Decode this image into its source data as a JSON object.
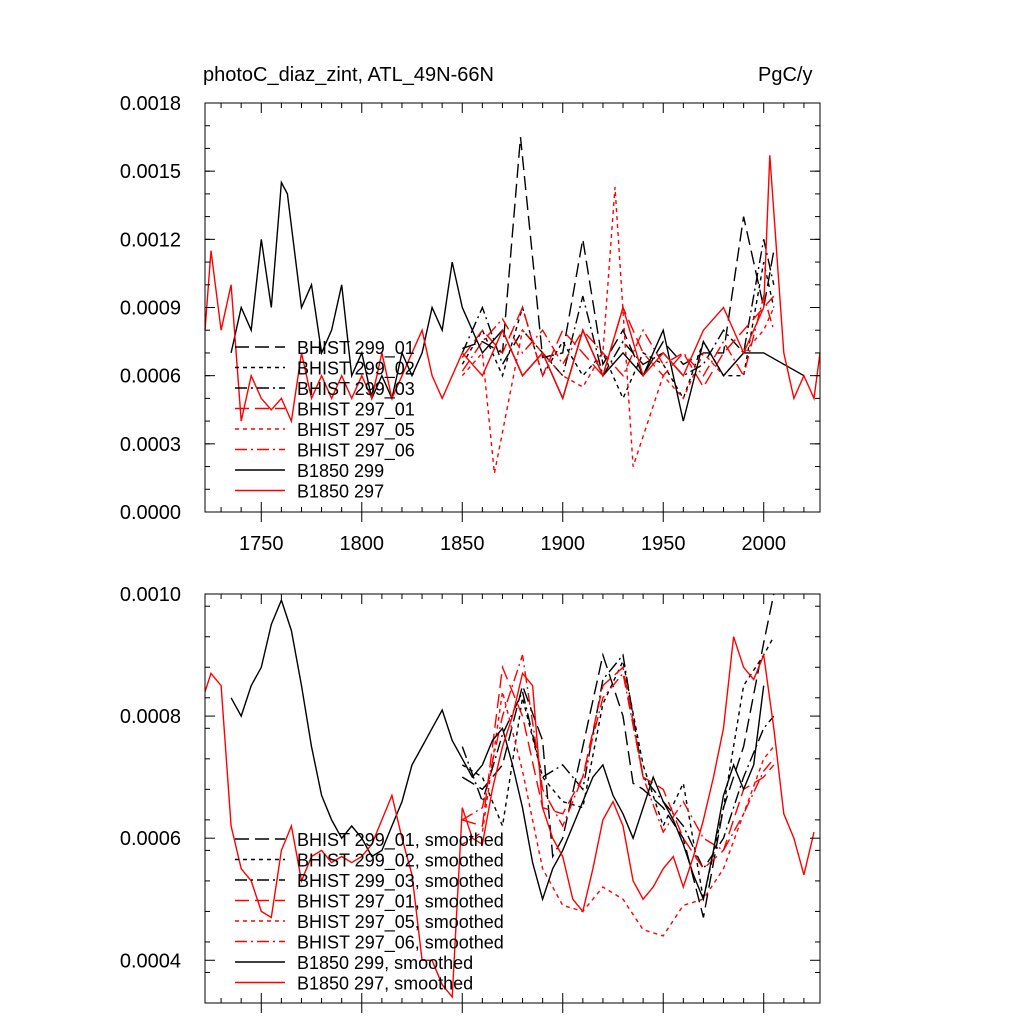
{
  "header": {
    "title_left": "photoC_diaz_zint, ATL_49N-66N",
    "title_right": "PgC/y"
  },
  "chart_data": [
    {
      "type": "line",
      "title": "photoC_diaz_zint, ATL_49N-66N",
      "units": "PgC/y",
      "xlim": [
        1722,
        2028
      ],
      "ylim": [
        0.0,
        0.0018
      ],
      "x_ticks": [
        1750,
        1800,
        1850,
        1900,
        1950,
        2000
      ],
      "x_tick_labels": [
        "1750",
        "1800",
        "1850",
        "1900",
        "1950",
        "2000"
      ],
      "y_ticks": [
        0.0,
        0.0003,
        0.0006,
        0.0009,
        0.0012,
        0.0015,
        0.0018
      ],
      "y_tick_labels": [
        "0.0000",
        "0.0003",
        "0.0006",
        "0.0009",
        "0.0012",
        "0.0015",
        "0.0018"
      ],
      "legend_position": "left",
      "series": [
        {
          "name": "BHIST 299_01",
          "color": "#000000",
          "dash": "long",
          "x": [
            1850,
            1860,
            1870,
            1879,
            1890,
            1900,
            1910,
            1920,
            1930,
            1940,
            1950,
            1960,
            1970,
            1980,
            1990,
            2000,
            2005
          ],
          "y": [
            0.00072,
            0.00075,
            0.0007,
            0.00165,
            0.00068,
            0.0007,
            0.0012,
            0.00065,
            0.0008,
            0.0006,
            0.00075,
            0.00065,
            0.0007,
            0.0007,
            0.0013,
            0.0009,
            0.00115
          ]
        },
        {
          "name": "BHIST 299_02",
          "color": "#000000",
          "dash": "short",
          "x": [
            1850,
            1860,
            1870,
            1880,
            1890,
            1900,
            1910,
            1920,
            1930,
            1940,
            1950,
            1960,
            1970,
            1980,
            1990,
            2000,
            2005
          ],
          "y": [
            0.00065,
            0.0008,
            0.0006,
            0.0009,
            0.0006,
            0.00075,
            0.0006,
            0.0007,
            0.0005,
            0.0007,
            0.00065,
            0.0005,
            0.00075,
            0.0006,
            0.0006,
            0.0011,
            0.0009
          ]
        },
        {
          "name": "BHIST 299_03",
          "color": "#000000",
          "dash": "dashdot",
          "x": [
            1850,
            1860,
            1870,
            1880,
            1890,
            1900,
            1910,
            1920,
            1930,
            1940,
            1950,
            1960,
            1970,
            1980,
            1990,
            2000,
            2005
          ],
          "y": [
            0.0007,
            0.0009,
            0.00065,
            0.0008,
            0.0007,
            0.0006,
            0.00095,
            0.0006,
            0.00075,
            0.00065,
            0.0007,
            0.0006,
            0.00065,
            0.0008,
            0.0007,
            0.0012,
            0.001
          ]
        },
        {
          "name": "BHIST 297_01",
          "color": "#ff0000",
          "dash": "long",
          "x": [
            1850,
            1860,
            1870,
            1880,
            1890,
            1900,
            1910,
            1920,
            1930,
            1940,
            1950,
            1960,
            1970,
            1980,
            1990,
            2000,
            2005
          ],
          "y": [
            0.00068,
            0.0008,
            0.0007,
            0.0009,
            0.0006,
            0.0008,
            0.0007,
            0.0006,
            0.0009,
            0.0007,
            0.0006,
            0.0007,
            0.00055,
            0.0007,
            0.0008,
            0.0009,
            0.00095
          ]
        },
        {
          "name": "BHIST 297_05",
          "color": "#ff0000",
          "dash": "short",
          "x": [
            1850,
            1860,
            1866,
            1880,
            1890,
            1900,
            1910,
            1920,
            1926,
            1935,
            1950,
            1960,
            1970,
            1980,
            1990,
            2000,
            2005
          ],
          "y": [
            0.0006,
            0.0007,
            0.00017,
            0.0008,
            0.0007,
            0.0006,
            0.00055,
            0.0007,
            0.00143,
            0.0002,
            0.0006,
            0.0005,
            0.0007,
            0.0006,
            0.0007,
            0.0008,
            0.0009
          ]
        },
        {
          "name": "BHIST 297_06",
          "color": "#ff0000",
          "dash": "dashdot",
          "x": [
            1850,
            1860,
            1870,
            1880,
            1890,
            1900,
            1910,
            1920,
            1930,
            1940,
            1950,
            1960,
            1970,
            1980,
            1990,
            2000,
            2005
          ],
          "y": [
            0.00062,
            0.00075,
            0.00085,
            0.0007,
            0.0008,
            0.00065,
            0.0008,
            0.0007,
            0.0006,
            0.0008,
            0.00065,
            0.0007,
            0.0006,
            0.00075,
            0.0006,
            0.00095,
            0.0008
          ]
        },
        {
          "name": "B1850 299",
          "color": "#000000",
          "dash": "solid",
          "x": [
            1735,
            1740,
            1745,
            1750,
            1755,
            1760,
            1763,
            1770,
            1775,
            1780,
            1785,
            1790,
            1795,
            1800,
            1805,
            1810,
            1815,
            1820,
            1825,
            1830,
            1835,
            1840,
            1845,
            1850,
            1860,
            1870,
            1880,
            1890,
            1900,
            1910,
            1920,
            1930,
            1940,
            1950,
            1960,
            1970,
            1980,
            1990,
            2000,
            2020
          ],
          "y": [
            0.0007,
            0.0009,
            0.0008,
            0.0012,
            0.0009,
            0.00145,
            0.0014,
            0.0009,
            0.001,
            0.0007,
            0.0008,
            0.001,
            0.0006,
            0.0007,
            0.0005,
            0.0006,
            0.0005,
            0.0007,
            0.0006,
            0.0007,
            0.0009,
            0.0008,
            0.0011,
            0.0009,
            0.0007,
            0.0008,
            0.0006,
            0.0007,
            0.0005,
            0.0008,
            0.0006,
            0.0007,
            0.0006,
            0.0008,
            0.0004,
            0.00075,
            0.0006,
            0.0007,
            0.0007,
            0.0006
          ]
        },
        {
          "name": "B1850 297",
          "color": "#ff0000",
          "dash": "solid",
          "x": [
            1722,
            1725,
            1730,
            1735,
            1740,
            1745,
            1750,
            1755,
            1760,
            1765,
            1770,
            1775,
            1780,
            1785,
            1790,
            1795,
            1800,
            1805,
            1810,
            1815,
            1820,
            1825,
            1830,
            1835,
            1840,
            1850,
            1860,
            1870,
            1880,
            1890,
            1900,
            1910,
            1920,
            1930,
            1940,
            1950,
            1960,
            1970,
            1980,
            1990,
            2000,
            2003,
            2010,
            2015,
            2020,
            2025,
            2028
          ],
          "y": [
            0.0008,
            0.00115,
            0.0008,
            0.001,
            0.0004,
            0.0006,
            0.0005,
            0.00045,
            0.0005,
            0.0004,
            0.0007,
            0.0005,
            0.0006,
            0.0005,
            0.0006,
            0.0005,
            0.0006,
            0.0005,
            0.0007,
            0.0005,
            0.0006,
            0.0007,
            0.0008,
            0.0006,
            0.0005,
            0.0007,
            0.0006,
            0.0008,
            0.0006,
            0.0007,
            0.0005,
            0.0008,
            0.0006,
            0.0009,
            0.0006,
            0.0007,
            0.0006,
            0.0008,
            0.0009,
            0.0007,
            0.0009,
            0.00157,
            0.0007,
            0.0005,
            0.0006,
            0.0005,
            0.0007
          ]
        }
      ]
    },
    {
      "type": "line",
      "xlim": [
        1722,
        2028
      ],
      "ylim": [
        0.00033,
        0.001
      ],
      "x_ticks": [
        1750,
        1800,
        1850,
        1900,
        1950,
        2000
      ],
      "y_ticks": [
        0.0004,
        0.0006,
        0.0008,
        0.001
      ],
      "y_tick_labels": [
        "0.0004",
        "0.0006",
        "0.0008",
        "0.0010"
      ],
      "legend_position": "bottom-left",
      "series": [
        {
          "name": "BHIST 299_01, smoothed",
          "color": "#000000",
          "dash": "long",
          "x": [
            1850,
            1860,
            1870,
            1880,
            1890,
            1895,
            1900,
            1910,
            1920,
            1930,
            1935,
            1940,
            1950,
            1960,
            1970,
            1980,
            1990,
            2000,
            2005
          ],
          "y": [
            0.0007,
            0.00068,
            0.00072,
            0.00085,
            0.00076,
            0.00057,
            0.0006,
            0.00075,
            0.0009,
            0.0008,
            0.00069,
            0.00068,
            0.00065,
            0.0006,
            0.00047,
            0.00065,
            0.00075,
            0.00092,
            0.001
          ]
        },
        {
          "name": "BHIST 299_02, smoothed",
          "color": "#000000",
          "dash": "short",
          "x": [
            1850,
            1860,
            1870,
            1880,
            1890,
            1900,
            1910,
            1920,
            1930,
            1940,
            1950,
            1960,
            1970,
            1980,
            1990,
            2000,
            2005
          ],
          "y": [
            0.00072,
            0.0007,
            0.00062,
            0.00083,
            0.0007,
            0.00066,
            0.00065,
            0.00082,
            0.00089,
            0.00072,
            0.00062,
            0.00069,
            0.0005,
            0.00065,
            0.00085,
            0.0009,
            0.00093
          ]
        },
        {
          "name": "BHIST 299_03, smoothed",
          "color": "#000000",
          "dash": "dashdot",
          "x": [
            1850,
            1860,
            1870,
            1880,
            1890,
            1900,
            1910,
            1920,
            1930,
            1940,
            1950,
            1960,
            1970,
            1980,
            1990,
            2000,
            2005
          ],
          "y": [
            0.00075,
            0.00066,
            0.00077,
            0.00084,
            0.0007,
            0.00072,
            0.00068,
            0.00086,
            0.0009,
            0.0007,
            0.00066,
            0.00062,
            0.00055,
            0.0006,
            0.0007,
            0.00078,
            0.0008
          ]
        },
        {
          "name": "BHIST 297_01, smoothed",
          "color": "#ff0000",
          "dash": "long",
          "x": [
            1850,
            1860,
            1870,
            1880,
            1890,
            1900,
            1910,
            1920,
            1930,
            1940,
            1950,
            1960,
            1970,
            1980,
            1990,
            2000,
            2005
          ],
          "y": [
            0.00063,
            0.00062,
            0.00088,
            0.0008,
            0.00065,
            0.00064,
            0.0007,
            0.00085,
            0.00088,
            0.0007,
            0.00068,
            0.0006,
            0.00055,
            0.00058,
            0.00068,
            0.0007,
            0.00072
          ]
        },
        {
          "name": "BHIST 297_05, smoothed",
          "color": "#ff0000",
          "dash": "short",
          "x": [
            1850,
            1860,
            1870,
            1880,
            1890,
            1900,
            1910,
            1920,
            1930,
            1940,
            1950,
            1960,
            1970,
            1980,
            1990,
            2000,
            2005
          ],
          "y": [
            0.00059,
            0.00061,
            0.00084,
            0.00071,
            0.00055,
            0.00049,
            0.00048,
            0.00052,
            0.0005,
            0.00045,
            0.00044,
            0.00049,
            0.0005,
            0.00055,
            0.00064,
            0.00073,
            0.00075
          ]
        },
        {
          "name": "BHIST 297_06, smoothed",
          "color": "#ff0000",
          "dash": "dashdot",
          "x": [
            1850,
            1860,
            1870,
            1880,
            1890,
            1900,
            1910,
            1920,
            1930,
            1940,
            1950,
            1960,
            1970,
            1980,
            1990,
            2000,
            2005
          ],
          "y": [
            0.00063,
            0.00065,
            0.0008,
            0.0009,
            0.00068,
            0.00062,
            0.0007,
            0.00083,
            0.00087,
            0.0007,
            0.00061,
            0.00066,
            0.0006,
            0.00058,
            0.00064,
            0.00071,
            0.00073
          ]
        },
        {
          "name": "B1850 299, smoothed",
          "color": "#000000",
          "dash": "solid",
          "x": [
            1735,
            1740,
            1745,
            1750,
            1755,
            1760,
            1765,
            1770,
            1775,
            1780,
            1785,
            1790,
            1795,
            1800,
            1805,
            1810,
            1815,
            1820,
            1825,
            1830,
            1835,
            1840,
            1845,
            1850,
            1855,
            1860,
            1865,
            1870,
            1875,
            1880,
            1885,
            1890,
            1895,
            1900,
            1905,
            1910,
            1915,
            1920,
            1925,
            1930,
            1935,
            1940,
            1945,
            1950,
            1955,
            1960,
            1965,
            1970,
            1975,
            1980,
            1985,
            1990,
            1995,
            2000
          ],
          "y": [
            0.00083,
            0.0008,
            0.00085,
            0.00088,
            0.00095,
            0.00099,
            0.00094,
            0.00085,
            0.00075,
            0.00067,
            0.00063,
            0.0006,
            0.00062,
            0.0006,
            0.00057,
            0.00058,
            0.00062,
            0.00066,
            0.00072,
            0.00075,
            0.00078,
            0.00081,
            0.00076,
            0.00073,
            0.0007,
            0.00072,
            0.00076,
            0.00078,
            0.00072,
            0.00065,
            0.00056,
            0.0005,
            0.00055,
            0.00058,
            0.00062,
            0.00066,
            0.0007,
            0.00072,
            0.00067,
            0.00064,
            0.0006,
            0.00065,
            0.0007,
            0.00066,
            0.00063,
            0.00059,
            0.00054,
            0.0005,
            0.00058,
            0.00067,
            0.00072,
            0.00068,
            0.00072,
            0.00085
          ]
        },
        {
          "name": "B1850 297, smoothed",
          "color": "#ff0000",
          "dash": "solid",
          "x": [
            1722,
            1725,
            1730,
            1735,
            1740,
            1745,
            1750,
            1755,
            1760,
            1765,
            1770,
            1775,
            1780,
            1785,
            1790,
            1795,
            1800,
            1805,
            1810,
            1815,
            1820,
            1825,
            1830,
            1835,
            1840,
            1845,
            1850,
            1855,
            1860,
            1865,
            1870,
            1875,
            1880,
            1885,
            1890,
            1895,
            1900,
            1905,
            1910,
            1915,
            1920,
            1925,
            1930,
            1935,
            1940,
            1945,
            1950,
            1955,
            1960,
            1965,
            1970,
            1975,
            1980,
            1985,
            1990,
            1995,
            2000,
            2005,
            2010,
            2015,
            2020,
            2025
          ],
          "y": [
            0.00084,
            0.00087,
            0.00085,
            0.00062,
            0.00055,
            0.00053,
            0.00048,
            0.00047,
            0.00058,
            0.00062,
            0.00053,
            0.00057,
            0.00058,
            0.00056,
            0.00057,
            0.00056,
            0.00057,
            0.00059,
            0.00063,
            0.00067,
            0.0006,
            0.00054,
            0.0004,
            0.0004,
            0.00036,
            0.00034,
            0.00065,
            0.0006,
            0.00059,
            0.00068,
            0.00075,
            0.0008,
            0.00087,
            0.00085,
            0.00065,
            0.0006,
            0.00057,
            0.0005,
            0.00048,
            0.00055,
            0.00063,
            0.00066,
            0.00062,
            0.00053,
            0.0005,
            0.00052,
            0.00055,
            0.00057,
            0.00052,
            0.00057,
            0.00063,
            0.0007,
            0.00078,
            0.00093,
            0.00088,
            0.00086,
            0.0009,
            0.00078,
            0.00064,
            0.0006,
            0.00054,
            0.00061
          ]
        }
      ]
    }
  ]
}
